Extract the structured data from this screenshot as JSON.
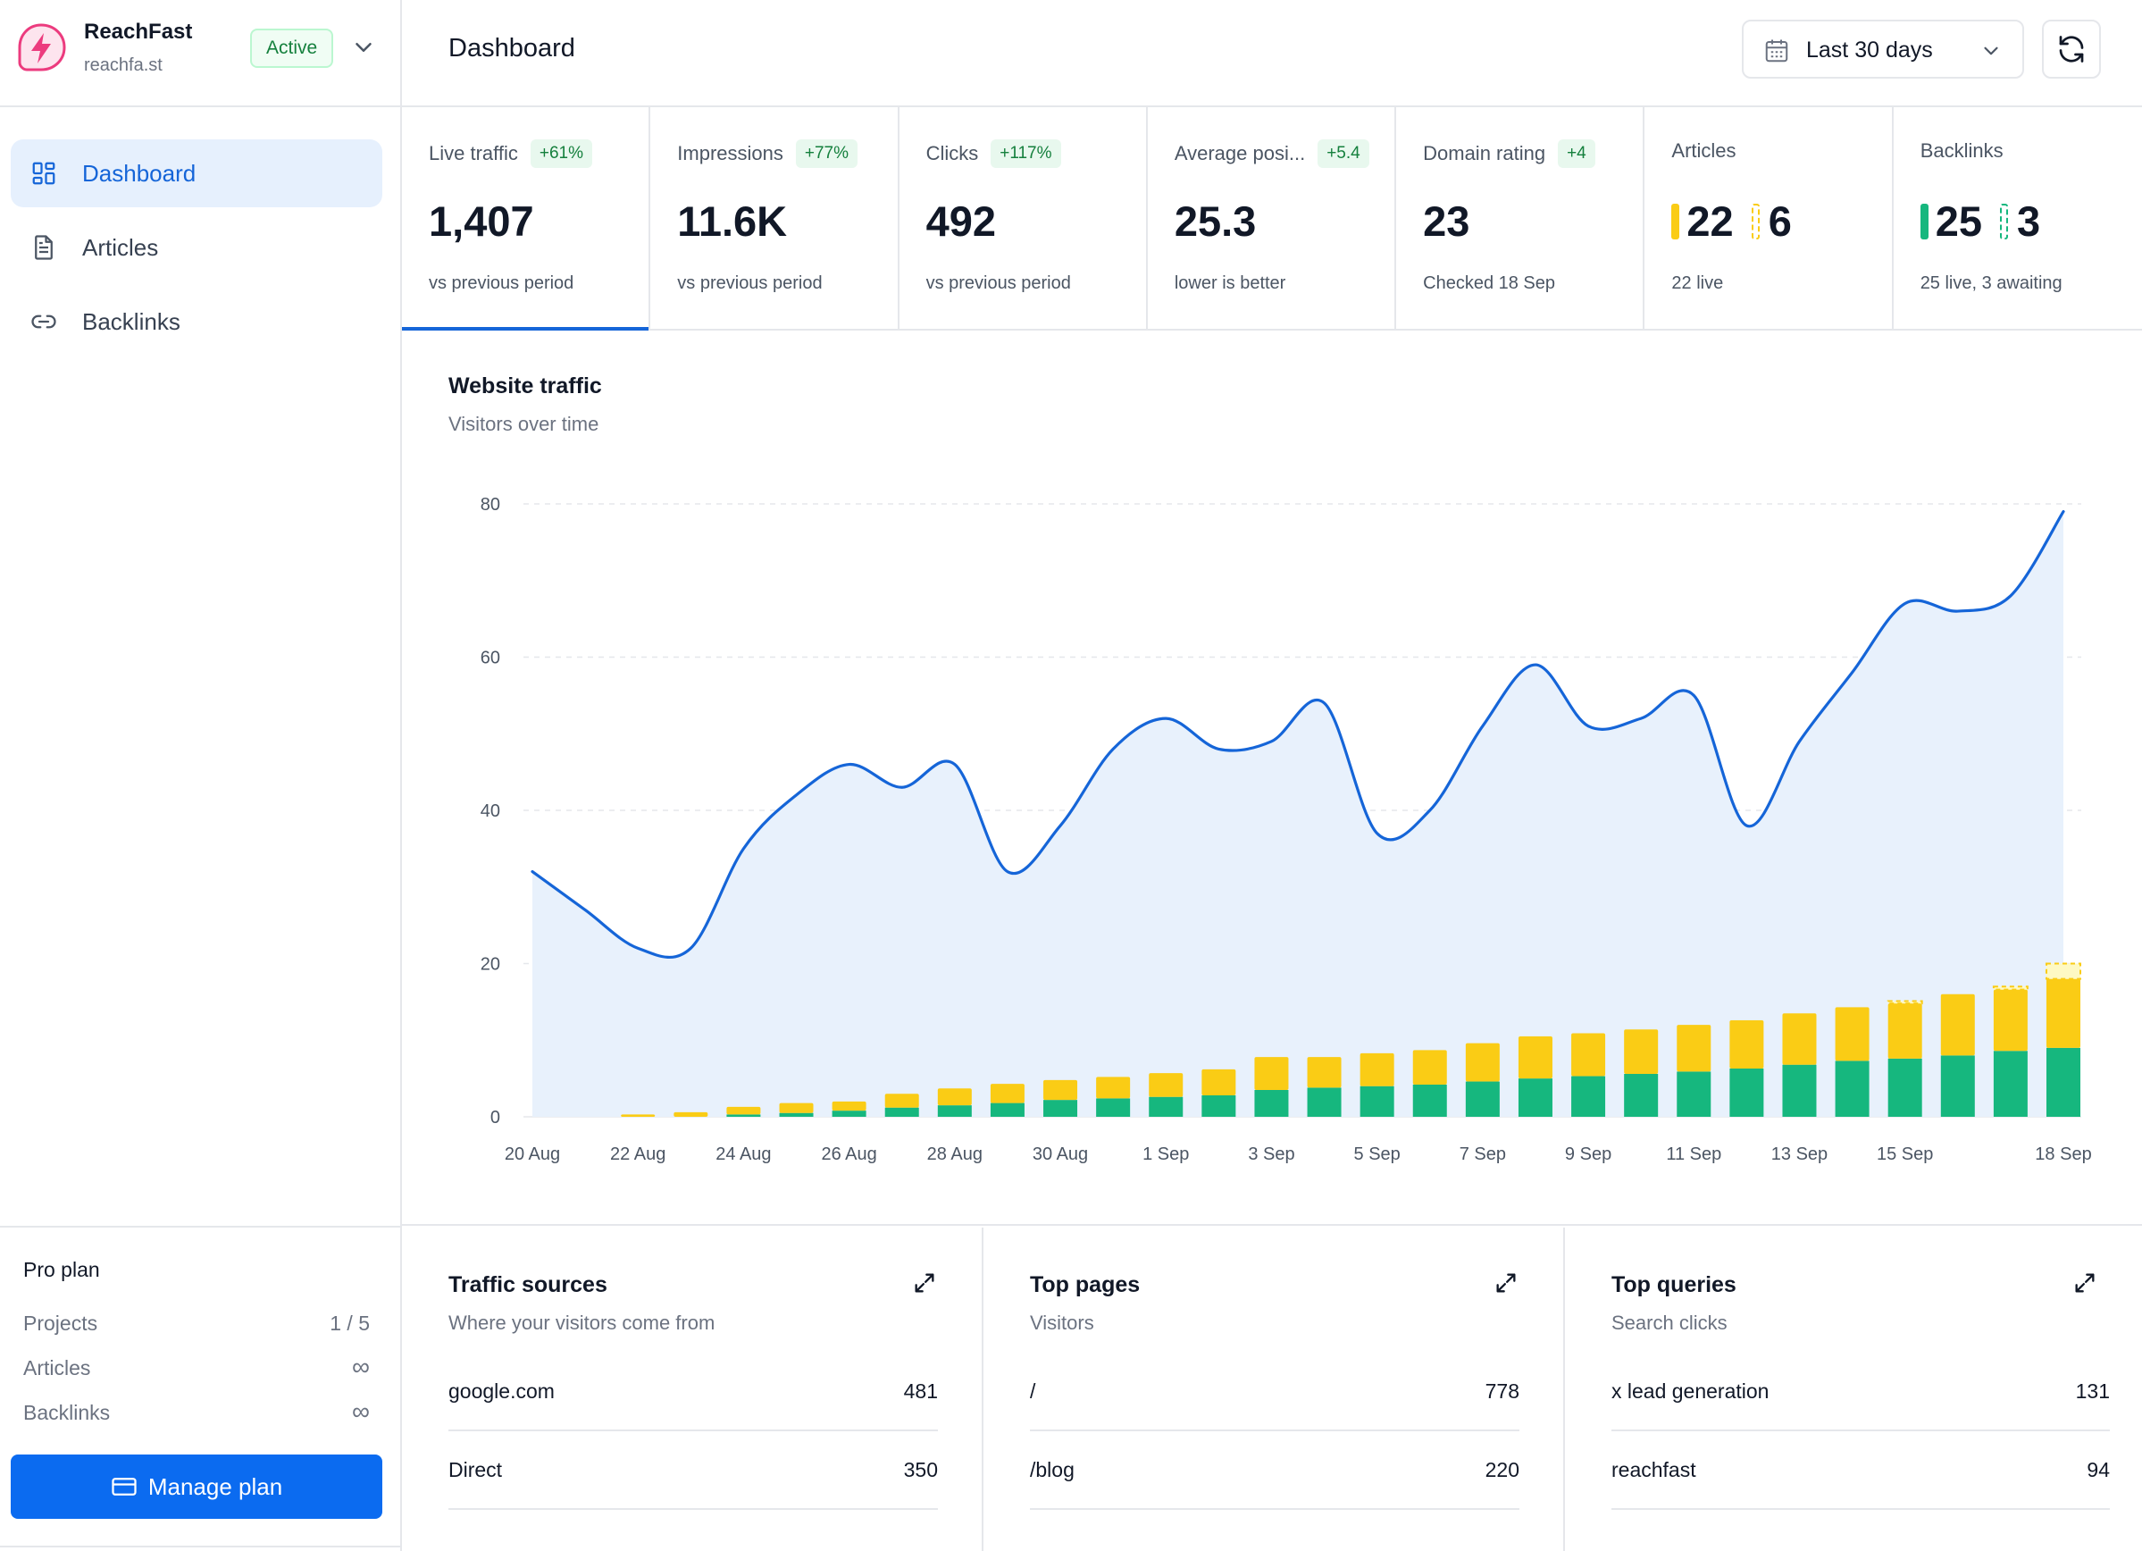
{
  "brand": {
    "name": "ReachFast",
    "domain": "reachfa.st",
    "status": "Active"
  },
  "nav": {
    "items": [
      {
        "label": "Dashboard",
        "icon": "dashboard-icon",
        "active": true
      },
      {
        "label": "Articles",
        "icon": "document-icon",
        "active": false
      },
      {
        "label": "Backlinks",
        "icon": "link-icon",
        "active": false
      }
    ]
  },
  "plan": {
    "title": "Pro plan",
    "rows": [
      {
        "label": "Projects",
        "value": "1 / 5"
      },
      {
        "label": "Articles",
        "value": "∞"
      },
      {
        "label": "Backlinks",
        "value": "∞"
      }
    ],
    "button": "Manage plan"
  },
  "header": {
    "title": "Dashboard",
    "date_range": "Last 30 days"
  },
  "stats": [
    {
      "label": "Live traffic",
      "delta": "+61%",
      "value": "1,407",
      "sub": "vs previous period"
    },
    {
      "label": "Impressions",
      "delta": "+77%",
      "value": "11.6K",
      "sub": "vs previous period"
    },
    {
      "label": "Clicks",
      "delta": "+117%",
      "value": "492",
      "sub": "vs previous period"
    },
    {
      "label": "Average posi...",
      "delta": "+5.4",
      "value": "25.3",
      "sub": "lower is better"
    },
    {
      "label": "Domain rating",
      "delta": "+4",
      "value": "23",
      "sub": "Checked 18 Sep"
    },
    {
      "label": "Articles",
      "value": "22",
      "value2": "6",
      "sub": "22 live"
    },
    {
      "label": "Backlinks",
      "value": "25",
      "value2": "3",
      "sub": "25 live, 3 awaiting"
    }
  ],
  "traffic": {
    "title": "Website traffic",
    "subtitle": "Visitors over time"
  },
  "chart_data": {
    "type": "area",
    "x": [
      "20 Aug",
      "21 Aug",
      "22 Aug",
      "23 Aug",
      "24 Aug",
      "25 Aug",
      "26 Aug",
      "27 Aug",
      "28 Aug",
      "29 Aug",
      "30 Aug",
      "31 Aug",
      "1 Sep",
      "2 Sep",
      "3 Sep",
      "4 Sep",
      "5 Sep",
      "6 Sep",
      "7 Sep",
      "8 Sep",
      "9 Sep",
      "10 Sep",
      "11 Sep",
      "12 Sep",
      "13 Sep",
      "14 Sep",
      "15 Sep",
      "16 Sep",
      "17 Sep",
      "18 Sep"
    ],
    "x_tick_labels": [
      "20 Aug",
      "22 Aug",
      "24 Aug",
      "26 Aug",
      "28 Aug",
      "30 Aug",
      "1 Sep",
      "3 Sep",
      "5 Sep",
      "7 Sep",
      "9 Sep",
      "11 Sep",
      "13 Sep",
      "15 Sep",
      "18 Sep"
    ],
    "ylim": [
      0,
      80
    ],
    "y_ticks": [
      0,
      20,
      40,
      60,
      80
    ],
    "grid": true,
    "series": [
      {
        "kind": "area-line",
        "color": "#1565d8",
        "fill": "#e8f1fc",
        "values": [
          32,
          27,
          22,
          22,
          35,
          42,
          46,
          43,
          46,
          32,
          38,
          48,
          52,
          48,
          49,
          54,
          37,
          40,
          51,
          59,
          51,
          52,
          55,
          38,
          49,
          58,
          67,
          66,
          68,
          79
        ]
      },
      {
        "kind": "stacked-bar",
        "color": "#16b77e",
        "values": [
          0,
          0,
          0,
          0,
          0.3,
          0.5,
          0.8,
          1.2,
          1.5,
          1.8,
          2.2,
          2.4,
          2.6,
          2.8,
          3.5,
          3.8,
          4.0,
          4.2,
          4.6,
          5.0,
          5.3,
          5.6,
          5.9,
          6.3,
          6.8,
          7.3,
          7.6,
          8.0,
          8.6,
          9.0
        ]
      },
      {
        "kind": "stacked-bar",
        "color": "#facc15",
        "values": [
          0,
          0,
          0.3,
          0.6,
          1.0,
          1.3,
          1.2,
          1.8,
          2.2,
          2.5,
          2.6,
          2.8,
          3.1,
          3.4,
          4.3,
          4.0,
          4.3,
          4.5,
          5.0,
          5.5,
          5.6,
          5.8,
          6.1,
          6.3,
          6.7,
          7.0,
          7.2,
          8.0,
          8.0,
          9.0
        ]
      },
      {
        "kind": "pending-bar",
        "color": "#facc15",
        "values": [
          0,
          0,
          0,
          0,
          0,
          0,
          0,
          0,
          0,
          0,
          0,
          0,
          0,
          0,
          0,
          0,
          0,
          0,
          0,
          0,
          0,
          0,
          0,
          0,
          0,
          0,
          0.3,
          0,
          0.4,
          2.0
        ]
      }
    ]
  },
  "cards": [
    {
      "title": "Traffic sources",
      "subtitle": "Where your visitors come from",
      "rows": [
        {
          "k": "google.com",
          "v": "481"
        },
        {
          "k": "Direct",
          "v": "350"
        }
      ]
    },
    {
      "title": "Top pages",
      "subtitle": "Visitors",
      "rows": [
        {
          "k": "/",
          "v": "778"
        },
        {
          "k": "/blog",
          "v": "220"
        }
      ]
    },
    {
      "title": "Top queries",
      "subtitle": "Search clicks",
      "rows": [
        {
          "k": "x lead generation",
          "v": "131"
        },
        {
          "k": "reachfast",
          "v": "94"
        }
      ]
    }
  ],
  "colors": {
    "accent": "#1565d8",
    "button": "#0b6bf0",
    "delta_bg": "#e8f8ee",
    "delta_text": "#15803d",
    "bar_green": "#16b77e",
    "bar_yellow": "#facc15",
    "brand_pink": "#ec3b7e"
  }
}
